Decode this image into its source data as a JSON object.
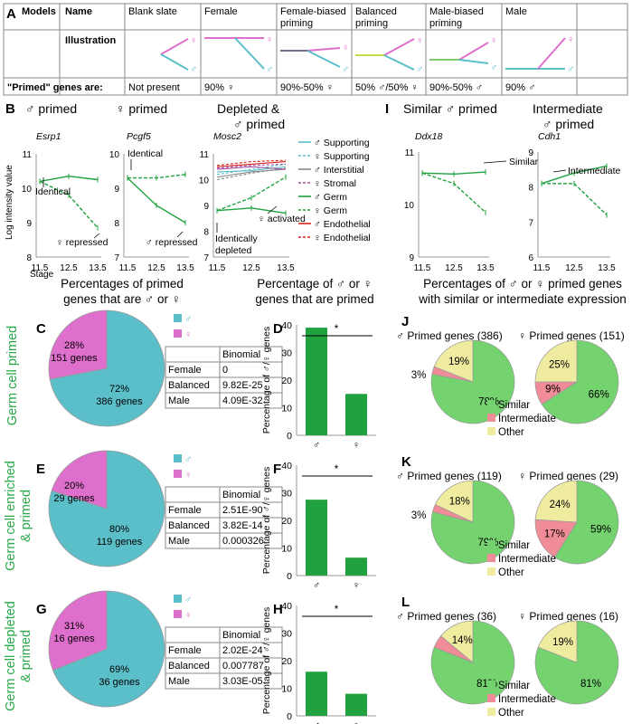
{
  "colors": {
    "male": "#5bbfca",
    "female": "#df6fcc",
    "green": "#1fa23f",
    "greenRowLabel": "#2aa84a",
    "pieGreen": "#74d36f",
    "pieRed": "#f08c98",
    "pieYellow": "#efeca0",
    "bar": "#22a23f",
    "legendPurple": "#a34fa3",
    "legendGray": "#888888",
    "legendRed": "#d8241b"
  },
  "panelA": {
    "letter": "A",
    "header": [
      "Models",
      "Name",
      "Blank slate",
      "Female",
      "Female-biased priming",
      "Balanced priming",
      "Male-biased priming",
      "Male"
    ],
    "row2label": "Illustration",
    "row3label": "\"Primed\" genes are:",
    "row3": [
      "Not present",
      "90% ♀",
      "90%-50% ♀",
      "50% ♂/50% ♀",
      "90%-50% ♂",
      "90% ♂"
    ]
  },
  "panelB": {
    "letter": "B",
    "titles": [
      "♂ primed",
      "♀ primed",
      "Depleted & ♂ primed"
    ],
    "genes": [
      "Esrp1",
      "Pcgf5",
      "Mosc2"
    ],
    "ylabel": "Log intensity value",
    "xlabel": "Stage",
    "xticks": [
      "11.5",
      "12.5",
      "13.5"
    ],
    "annotations": [
      "Identical",
      "♀ repressed",
      "Identical",
      "♂ repressed",
      "♀ activated",
      "Identically depleted"
    ],
    "legend": [
      "♂ Supporting",
      "♀ Supporting",
      "♂ Interstitial",
      "♀ Stromal",
      "♂ Germ",
      "♀ Germ",
      "♂ Endothelial",
      "♀ Endothelial"
    ]
  },
  "panelI": {
    "letter": "I",
    "titles": [
      "Similar ♂ primed",
      "Intermediate ♂ primed"
    ],
    "genes": [
      "Ddx18",
      "Cdh1"
    ],
    "annotations": [
      "Similar",
      "Intermediate"
    ]
  },
  "midTitles": [
    "Percentages of primed genes that are ♂ or ♀",
    "Percentage of ♂ or ♀ genes that are primed",
    "Percentages of ♂ or ♀ primed genes with similar or intermediate expression"
  ],
  "rows": [
    {
      "rowLabel": "Germ cell primed",
      "pieLetter": "C",
      "barLetter": "D",
      "pieLetters2": "J",
      "malePct": "72%",
      "maleGenes": "386 genes",
      "femalePct": "28%",
      "femaleGenes": "151 genes",
      "binomial": {
        "header": "Binomial",
        "rows": [
          [
            "Female",
            "0"
          ],
          [
            "Balanced",
            "9.82E-25"
          ],
          [
            "Male",
            "4.09E-32"
          ]
        ]
      },
      "maleTitle": "♂ Primed genes (386)",
      "femaleTitle": "♀ Primed genes (151)",
      "malePie": [
        "78%",
        "3%",
        "19%"
      ],
      "femalePie": [
        "66%",
        "9%",
        "25%"
      ]
    },
    {
      "rowLabel": "Germ cell enriched & primed",
      "pieLetter": "E",
      "barLetter": "F",
      "pieLetters2": "K",
      "malePct": "80%",
      "maleGenes": "119 genes",
      "femalePct": "20%",
      "femaleGenes": "29 genes",
      "binomial": {
        "header": "Binomial",
        "rows": [
          [
            "Female",
            "2.51E-90"
          ],
          [
            "Balanced",
            "3.82E-14"
          ],
          [
            "Male",
            "0.000326"
          ]
        ]
      },
      "maleTitle": "♂ Primed genes (119)",
      "femaleTitle": "♀ Primed genes (29)",
      "malePie": [
        "79%",
        "3%",
        "18%"
      ],
      "femalePie": [
        "59%",
        "17%",
        "24%"
      ]
    },
    {
      "rowLabel": "Germ cell depleted & primed",
      "pieLetter": "G",
      "barLetter": "H",
      "pieLetters2": "L",
      "malePct": "69%",
      "maleGenes": "36 genes",
      "femalePct": "31%",
      "femaleGenes": "16 genes",
      "binomial": {
        "header": "Binomial",
        "rows": [
          [
            "Female",
            "2.02E-24"
          ],
          [
            "Balanced",
            "0.007787"
          ],
          [
            "Male",
            "3.03E-05"
          ]
        ]
      },
      "maleTitle": "♂ Primed genes (36)",
      "femaleTitle": "♀ Primed genes (16)",
      "malePie": [
        "81%",
        "",
        "14%"
      ],
      "femalePie": [
        "81%",
        "",
        "19%"
      ]
    }
  ],
  "pieLegend": [
    "♂",
    "♀"
  ],
  "barYlabel": "Percentage of ♂/♀ genes",
  "barTicks": [
    "0",
    "10",
    "20",
    "30",
    "40"
  ],
  "barX": [
    "♂",
    "♀"
  ],
  "sig": "*",
  "simLegend": [
    "Similar",
    "Intermediate",
    "Other"
  ],
  "chart_data": [
    {
      "type": "line",
      "id": "B-Esrp1",
      "xlabel": "Stage",
      "ylabel": "Log intensity value",
      "x": [
        11.5,
        12.5,
        13.5
      ],
      "ylim": [
        8,
        11
      ],
      "series": [
        {
          "values": [
            10.2,
            10.35,
            10.25
          ],
          "style": "solid"
        },
        {
          "values": [
            10.2,
            9.8,
            8.85
          ],
          "style": "dashed"
        }
      ]
    },
    {
      "type": "line",
      "id": "B-Pcgf5",
      "x": [
        11.5,
        12.5,
        13.5
      ],
      "ylim": [
        7,
        10
      ],
      "series": [
        {
          "values": [
            9.3,
            8.5,
            8.0
          ],
          "style": "solid"
        },
        {
          "values": [
            9.3,
            9.3,
            9.4
          ],
          "style": "dashed"
        }
      ]
    },
    {
      "type": "line",
      "id": "B-Mosc2",
      "x": [
        11.5,
        12.5,
        13.5
      ],
      "ylim": [
        7,
        11
      ],
      "series": [
        {
          "values": [
            8.8,
            8.9,
            8.7
          ],
          "style": "solid"
        },
        {
          "values": [
            8.8,
            9.3,
            10.1
          ],
          "style": "dashed"
        }
      ]
    },
    {
      "type": "line",
      "id": "I-Ddx18",
      "x": [
        11.5,
        12.5,
        13.5
      ],
      "yticks": [
        9,
        10,
        11
      ],
      "series": [
        {
          "values": [
            10.6,
            10.58,
            10.62
          ],
          "style": "solid"
        },
        {
          "values": [
            10.6,
            10.4,
            9.85
          ],
          "style": "dashed"
        }
      ]
    },
    {
      "type": "line",
      "id": "I-Cdh1",
      "x": [
        11.5,
        12.5,
        13.5
      ],
      "ylim": [
        6,
        9
      ],
      "series": [
        {
          "values": [
            8.1,
            8.4,
            8.6
          ],
          "style": "solid"
        },
        {
          "values": [
            8.1,
            8.1,
            7.2
          ],
          "style": "dashed"
        }
      ]
    },
    {
      "type": "pie",
      "id": "C",
      "categories": [
        "♂",
        "♀"
      ],
      "values": [
        72,
        28
      ]
    },
    {
      "type": "pie",
      "id": "E",
      "categories": [
        "♂",
        "♀"
      ],
      "values": [
        80,
        20
      ]
    },
    {
      "type": "pie",
      "id": "G",
      "categories": [
        "♂",
        "♀"
      ],
      "values": [
        69,
        31
      ]
    },
    {
      "type": "bar",
      "id": "D",
      "categories": [
        "♂",
        "♀"
      ],
      "values": [
        39,
        15
      ],
      "ylim": [
        0,
        40
      ]
    },
    {
      "type": "bar",
      "id": "F",
      "categories": [
        "♂",
        "♀"
      ],
      "values": [
        27.5,
        6.5
      ],
      "ylim": [
        0,
        40
      ]
    },
    {
      "type": "bar",
      "id": "H",
      "categories": [
        "♂",
        "♀"
      ],
      "values": [
        16,
        8
      ],
      "ylim": [
        0,
        40
      ]
    },
    {
      "type": "pie",
      "id": "J-male",
      "categories": [
        "Similar",
        "Intermediate",
        "Other"
      ],
      "values": [
        78,
        3,
        19
      ]
    },
    {
      "type": "pie",
      "id": "J-female",
      "categories": [
        "Similar",
        "Intermediate",
        "Other"
      ],
      "values": [
        66,
        9,
        25
      ]
    },
    {
      "type": "pie",
      "id": "K-male",
      "categories": [
        "Similar",
        "Intermediate",
        "Other"
      ],
      "values": [
        79,
        3,
        18
      ]
    },
    {
      "type": "pie",
      "id": "K-female",
      "categories": [
        "Similar",
        "Intermediate",
        "Other"
      ],
      "values": [
        59,
        17,
        24
      ]
    },
    {
      "type": "pie",
      "id": "L-male",
      "categories": [
        "Similar",
        "Intermediate",
        "Other"
      ],
      "values": [
        81,
        5,
        14
      ]
    },
    {
      "type": "pie",
      "id": "L-female",
      "categories": [
        "Similar",
        "Intermediate",
        "Other"
      ],
      "values": [
        81,
        0,
        19
      ]
    }
  ]
}
